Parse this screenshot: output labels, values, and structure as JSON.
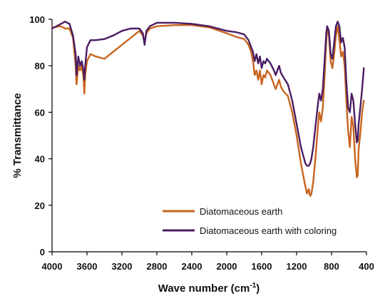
{
  "chart_data": {
    "type": "line",
    "title": "",
    "xlabel": "Wave number (cm",
    "xlabel_sup": "-1",
    "xlabel_close": ")",
    "ylabel": "% Transmittance",
    "xlim": [
      4000,
      400
    ],
    "x_reversed": true,
    "ylim": [
      0,
      100
    ],
    "x_ticks": [
      4000,
      3600,
      3200,
      2800,
      2400,
      2000,
      1600,
      1200,
      800,
      400
    ],
    "y_ticks": [
      0,
      20,
      40,
      60,
      80,
      100
    ],
    "grid": false,
    "legend_position": "bottom-center",
    "series": [
      {
        "name": "Diatomaceous earth",
        "color": "#c8641e",
        "points": [
          [
            4000,
            96.5
          ],
          [
            3900,
            97
          ],
          [
            3850,
            96
          ],
          [
            3800,
            96
          ],
          [
            3760,
            92
          ],
          [
            3730,
            80
          ],
          [
            3720,
            72
          ],
          [
            3700,
            80
          ],
          [
            3680,
            78
          ],
          [
            3660,
            80
          ],
          [
            3640,
            75
          ],
          [
            3630,
            68
          ],
          [
            3620,
            76
          ],
          [
            3600,
            82
          ],
          [
            3560,
            85
          ],
          [
            3500,
            84
          ],
          [
            3400,
            83
          ],
          [
            3300,
            86
          ],
          [
            3200,
            89
          ],
          [
            3100,
            92
          ],
          [
            3000,
            95
          ],
          [
            2960,
            93
          ],
          [
            2940,
            90
          ],
          [
            2920,
            94
          ],
          [
            2880,
            96
          ],
          [
            2800,
            97
          ],
          [
            2600,
            97.5
          ],
          [
            2400,
            97.5
          ],
          [
            2200,
            96.5
          ],
          [
            2000,
            94
          ],
          [
            1900,
            92.5
          ],
          [
            1800,
            91.5
          ],
          [
            1750,
            89
          ],
          [
            1720,
            86
          ],
          [
            1700,
            82
          ],
          [
            1680,
            76
          ],
          [
            1660,
            78
          ],
          [
            1640,
            74
          ],
          [
            1620,
            78
          ],
          [
            1600,
            72
          ],
          [
            1580,
            76
          ],
          [
            1560,
            75
          ],
          [
            1540,
            78
          ],
          [
            1500,
            76
          ],
          [
            1460,
            72
          ],
          [
            1440,
            70
          ],
          [
            1420,
            72
          ],
          [
            1400,
            74
          ],
          [
            1380,
            71
          ],
          [
            1350,
            69
          ],
          [
            1300,
            67
          ],
          [
            1250,
            60
          ],
          [
            1200,
            50
          ],
          [
            1150,
            38
          ],
          [
            1100,
            28
          ],
          [
            1080,
            25
          ],
          [
            1060,
            27
          ],
          [
            1045,
            24
          ],
          [
            1030,
            25
          ],
          [
            1010,
            30
          ],
          [
            980,
            42
          ],
          [
            960,
            52
          ],
          [
            940,
            60
          ],
          [
            920,
            56
          ],
          [
            900,
            62
          ],
          [
            880,
            75
          ],
          [
            860,
            90
          ],
          [
            850,
            97
          ],
          [
            830,
            93
          ],
          [
            810,
            82
          ],
          [
            790,
            79
          ],
          [
            770,
            85
          ],
          [
            750,
            93
          ],
          [
            730,
            97
          ],
          [
            710,
            91
          ],
          [
            690,
            84
          ],
          [
            670,
            86
          ],
          [
            650,
            80
          ],
          [
            630,
            65
          ],
          [
            610,
            52
          ],
          [
            590,
            45
          ],
          [
            570,
            58
          ],
          [
            550,
            54
          ],
          [
            530,
            40
          ],
          [
            510,
            32
          ],
          [
            500,
            33
          ],
          [
            490,
            44
          ],
          [
            470,
            51
          ],
          [
            450,
            60
          ],
          [
            430,
            65
          ]
        ]
      },
      {
        "name": "Diatomaceous earth with coloring",
        "color": "#4a1d62",
        "points": [
          [
            4000,
            96
          ],
          [
            3900,
            98
          ],
          [
            3850,
            99
          ],
          [
            3800,
            98
          ],
          [
            3760,
            93
          ],
          [
            3730,
            85
          ],
          [
            3720,
            76
          ],
          [
            3700,
            84
          ],
          [
            3680,
            80
          ],
          [
            3660,
            82
          ],
          [
            3640,
            78
          ],
          [
            3630,
            74
          ],
          [
            3620,
            80
          ],
          [
            3600,
            88
          ],
          [
            3560,
            91
          ],
          [
            3500,
            91
          ],
          [
            3400,
            91.5
          ],
          [
            3300,
            93
          ],
          [
            3200,
            95
          ],
          [
            3100,
            96
          ],
          [
            3000,
            96
          ],
          [
            2960,
            94
          ],
          [
            2940,
            89
          ],
          [
            2920,
            95
          ],
          [
            2880,
            97
          ],
          [
            2800,
            98.5
          ],
          [
            2600,
            98.5
          ],
          [
            2400,
            98
          ],
          [
            2200,
            97
          ],
          [
            2000,
            95
          ],
          [
            1900,
            94.5
          ],
          [
            1800,
            93.5
          ],
          [
            1750,
            91
          ],
          [
            1720,
            88
          ],
          [
            1700,
            86
          ],
          [
            1680,
            82
          ],
          [
            1660,
            85
          ],
          [
            1640,
            81
          ],
          [
            1620,
            84
          ],
          [
            1600,
            79
          ],
          [
            1580,
            82
          ],
          [
            1560,
            81
          ],
          [
            1540,
            83
          ],
          [
            1500,
            81
          ],
          [
            1460,
            78
          ],
          [
            1440,
            76
          ],
          [
            1420,
            78
          ],
          [
            1400,
            80
          ],
          [
            1380,
            77
          ],
          [
            1350,
            75
          ],
          [
            1300,
            72
          ],
          [
            1250,
            65
          ],
          [
            1200,
            55
          ],
          [
            1150,
            45
          ],
          [
            1100,
            38
          ],
          [
            1080,
            37
          ],
          [
            1060,
            37
          ],
          [
            1045,
            38
          ],
          [
            1030,
            40
          ],
          [
            1010,
            45
          ],
          [
            980,
            55
          ],
          [
            960,
            62
          ],
          [
            940,
            68
          ],
          [
            920,
            65
          ],
          [
            900,
            70
          ],
          [
            880,
            82
          ],
          [
            860,
            94
          ],
          [
            850,
            97
          ],
          [
            830,
            95
          ],
          [
            810,
            85
          ],
          [
            790,
            83
          ],
          [
            770,
            90
          ],
          [
            750,
            97
          ],
          [
            730,
            99
          ],
          [
            710,
            97
          ],
          [
            690,
            90
          ],
          [
            670,
            92
          ],
          [
            650,
            88
          ],
          [
            630,
            73
          ],
          [
            610,
            62
          ],
          [
            590,
            60
          ],
          [
            570,
            68
          ],
          [
            550,
            65
          ],
          [
            530,
            55
          ],
          [
            510,
            47
          ],
          [
            500,
            48
          ],
          [
            490,
            55
          ],
          [
            470,
            62
          ],
          [
            450,
            70
          ],
          [
            430,
            79
          ]
        ]
      }
    ]
  }
}
